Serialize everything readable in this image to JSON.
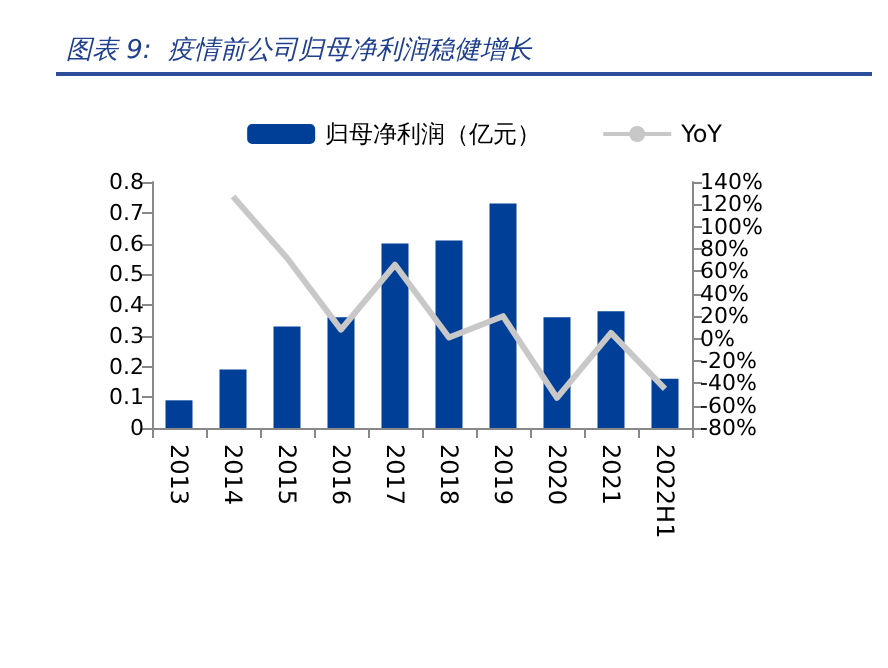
{
  "chart_data": {
    "type": "bar",
    "title": "图表 9:  疫情前公司归母净利润稳健增长",
    "categories": [
      "2013",
      "2014",
      "2015",
      "2016",
      "2017",
      "2018",
      "2019",
      "2020",
      "2021",
      "2022H1"
    ],
    "series": [
      {
        "name": "归母净利润（亿元）",
        "color": "#003f98",
        "values": [
          0.09,
          0.19,
          0.33,
          0.36,
          0.6,
          0.61,
          0.73,
          0.36,
          0.38,
          0.16
        ]
      },
      {
        "name": "YoY",
        "type": "line",
        "axis": "y2",
        "color": "#c8c8c8",
        "values": [
          null,
          127,
          72,
          8,
          66,
          1,
          20,
          -53,
          5,
          -45
        ]
      }
    ],
    "ylim": [
      0,
      0.8
    ],
    "yticks": [
      0,
      0.1,
      0.2,
      0.3,
      0.4,
      0.5,
      0.6,
      0.7,
      0.8
    ],
    "y2lim": [
      -80,
      140
    ],
    "y2ticks": [
      {
        "value": -80,
        "label": "-80%"
      },
      {
        "value": -60,
        "label": "-60%"
      },
      {
        "value": -40,
        "label": "-40%"
      },
      {
        "value": -20,
        "label": "-20%"
      },
      {
        "value": 0,
        "label": "0%"
      },
      {
        "value": 20,
        "label": "20%"
      },
      {
        "value": 40,
        "label": "40%"
      },
      {
        "value": 60,
        "label": "60%"
      },
      {
        "value": 80,
        "label": "80%"
      },
      {
        "value": 100,
        "label": "100%"
      },
      {
        "value": 120,
        "label": "120%"
      },
      {
        "value": 140,
        "label": "140%"
      }
    ],
    "legend": "top right",
    "marker": "none",
    "grid": false
  }
}
